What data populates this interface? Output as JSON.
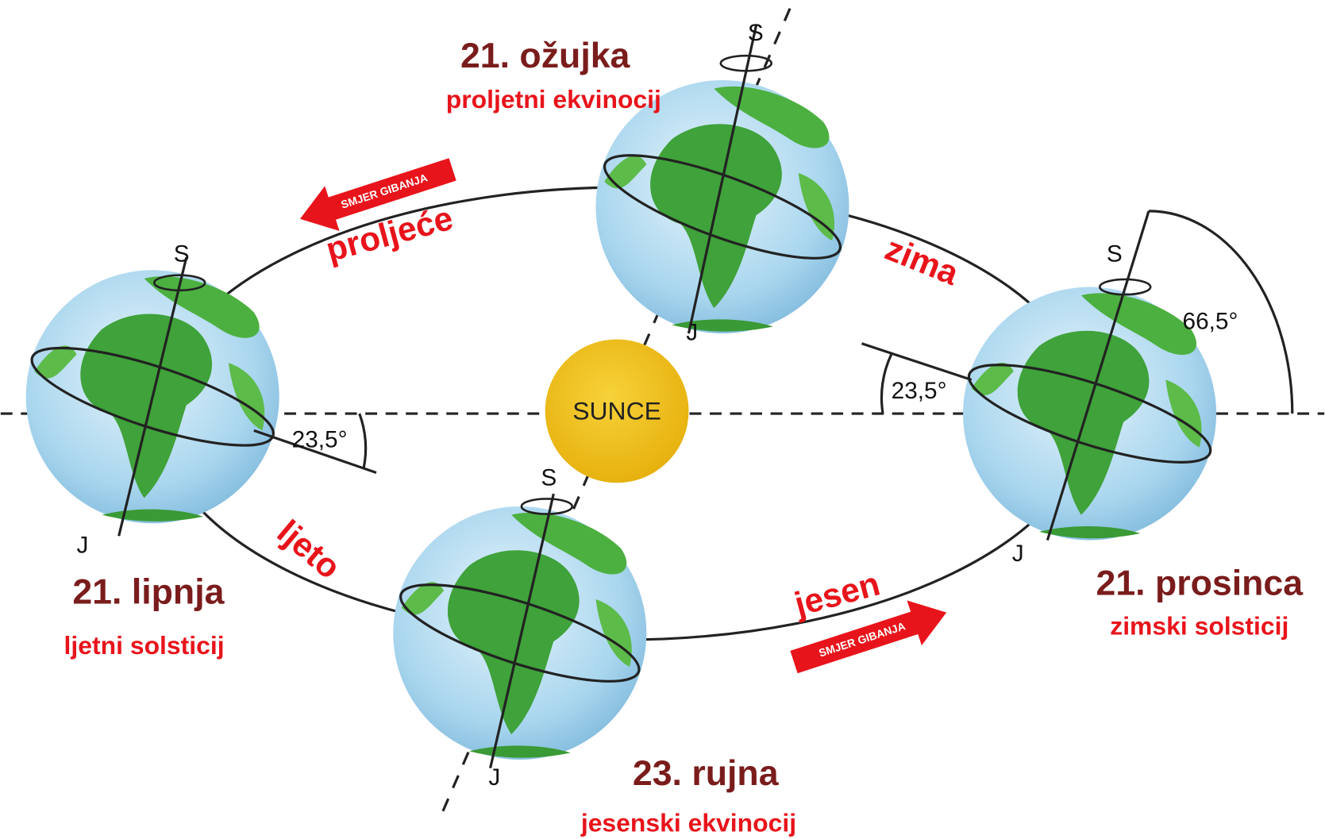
{
  "sun": {
    "label": "SUNCE"
  },
  "positions": [
    {
      "date": "21. ožujka",
      "event": "proljetni ekvinocij",
      "north": "S",
      "south": "J"
    },
    {
      "date": "21. lipnja",
      "event": "ljetni solsticij",
      "north": "S",
      "south": "J"
    },
    {
      "date": "23. rujna",
      "event": "jesenski ekvinocij",
      "north": "S",
      "south": "J"
    },
    {
      "date": "21. prosinca",
      "event": "zimski solsticij",
      "north": "S",
      "south": "J"
    }
  ],
  "seasons": [
    "proljeće",
    "zima",
    "ljeto",
    "jesen"
  ],
  "arrows": [
    "SMJER GIBANJA",
    "SMJER GIBANJA"
  ],
  "angles": [
    "23,5°",
    "23,5°",
    "66,5°"
  ]
}
